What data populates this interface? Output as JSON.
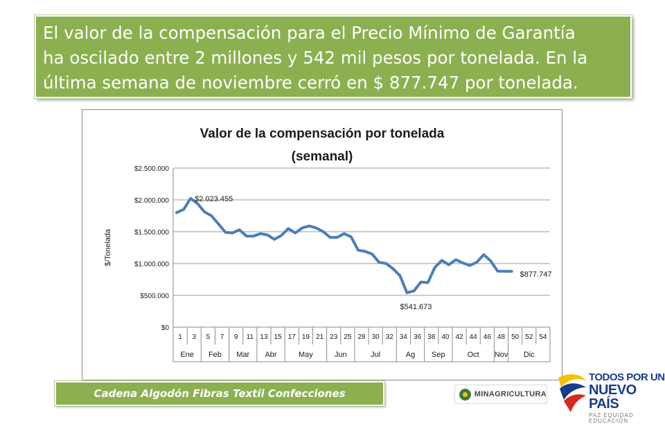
{
  "banner": {
    "line1": "El valor de la compensación para el Precio Mínimo de Garantía",
    "line2": "ha oscilado entre 2 millones y 542 mil pesos por tonelada. En la",
    "line3": "última semana de noviembre cerró en $ 877.747 por tonelada."
  },
  "footer": {
    "label": "Cadena Algodón Fibras Textil Confecciones"
  },
  "logos": {
    "ministry": "MINAGRICULTURA",
    "gov_line1": "TODOS POR UN",
    "gov_line2": "NUEVO PAÍS",
    "gov_line3": "PAZ  EQUIDAD  EDUCACIÓN"
  },
  "colors": {
    "banner": "#8cb050",
    "series": "#4a7ebb",
    "flag_yellow": "#f4c300",
    "flag_blue": "#1a3a8c",
    "flag_red": "#d52b1e"
  },
  "chart_data": {
    "type": "line",
    "title_line1": "Valor de la compensación por tonelada",
    "title_line2": "(semanal)",
    "ylabel": "$/Tonelada",
    "ylim": [
      0,
      2500000
    ],
    "yticks": [
      0,
      500000,
      1000000,
      1500000,
      2000000,
      2500000
    ],
    "ytick_labels": [
      "$0",
      "$500.000",
      "$1.000.000",
      "$1.500.000",
      "$2.000.000",
      "$2.500.000"
    ],
    "grid": true,
    "week_ticks": [
      "1",
      "3",
      "5",
      "7",
      "9",
      "11",
      "13",
      "15",
      "17",
      "19",
      "21",
      "23",
      "25",
      "28",
      "30",
      "32",
      "34",
      "36",
      "38",
      "40",
      "42",
      "44",
      "46",
      "48",
      "50",
      "52",
      "54"
    ],
    "months": [
      {
        "label": "Ene",
        "from": 0,
        "to": 2
      },
      {
        "label": "Feb",
        "from": 2,
        "to": 4
      },
      {
        "label": "Mar",
        "from": 4,
        "to": 6
      },
      {
        "label": "Abr",
        "from": 6,
        "to": 8
      },
      {
        "label": "May",
        "from": 8,
        "to": 11
      },
      {
        "label": "Jun",
        "from": 11,
        "to": 13
      },
      {
        "label": "Jul",
        "from": 13,
        "to": 16
      },
      {
        "label": "Ag",
        "from": 16,
        "to": 18
      },
      {
        "label": "Sep",
        "from": 18,
        "to": 20
      },
      {
        "label": "Oct",
        "from": 20,
        "to": 23
      },
      {
        "label": "Nov",
        "from": 23,
        "to": 24
      },
      {
        "label": "Dic",
        "from": 24,
        "to": 27
      }
    ],
    "series": [
      {
        "x": [
          1,
          2,
          3,
          4,
          5,
          6,
          7,
          8,
          9,
          10,
          11,
          12,
          13,
          14,
          15,
          16,
          17,
          18,
          19,
          20,
          21,
          22,
          23,
          24,
          25,
          26,
          27,
          28,
          29,
          30,
          31,
          32,
          33,
          34,
          35,
          36,
          37,
          38,
          39,
          40,
          41,
          42,
          43,
          44,
          45,
          46,
          47,
          48,
          49
        ],
        "values": [
          1800000,
          1850000,
          2023455,
          1940000,
          1810000,
          1750000,
          1620000,
          1490000,
          1480000,
          1530000,
          1430000,
          1430000,
          1470000,
          1450000,
          1380000,
          1440000,
          1550000,
          1480000,
          1560000,
          1590000,
          1560000,
          1500000,
          1410000,
          1410000,
          1470000,
          1420000,
          1210000,
          1190000,
          1150000,
          1020000,
          1000000,
          920000,
          810000,
          541673,
          570000,
          710000,
          700000,
          940000,
          1050000,
          980000,
          1060000,
          1010000,
          970000,
          1020000,
          1140000,
          1040000,
          880000,
          877747,
          877747
        ]
      }
    ],
    "annotations": [
      {
        "text": "$2.023.455",
        "x": 3,
        "y": 2023455
      },
      {
        "text": "$541.673",
        "x": 34,
        "y": 541673
      },
      {
        "text": "$877.747",
        "x": 49,
        "y": 877747
      }
    ]
  }
}
